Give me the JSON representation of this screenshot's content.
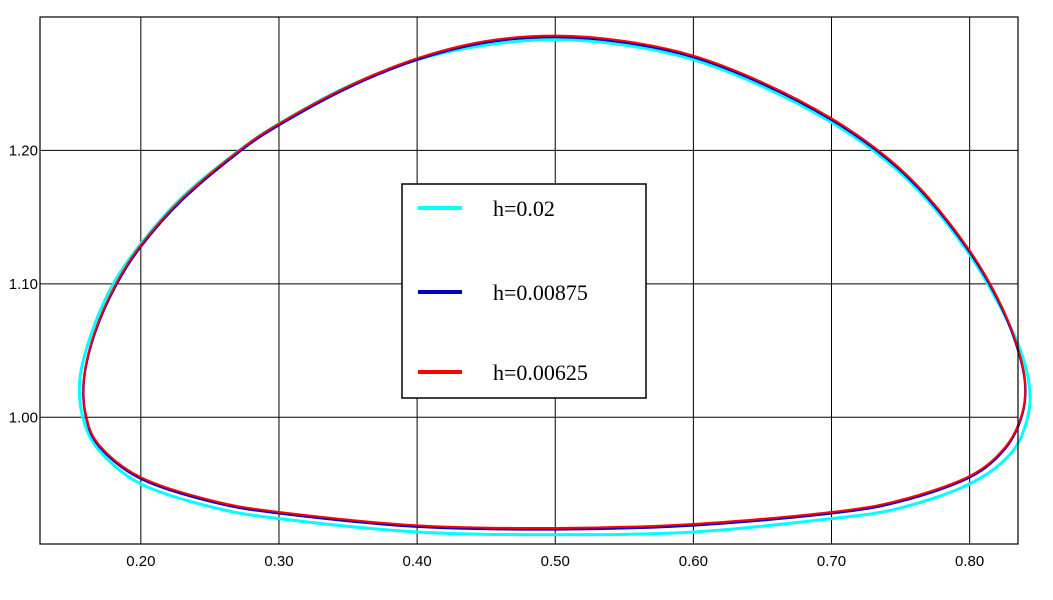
{
  "chart_data": {
    "type": "line",
    "title": "",
    "xlabel": "",
    "ylabel": "",
    "xlim": [
      0.127,
      0.835
    ],
    "ylim": [
      0.905,
      1.3
    ],
    "xticks": [
      0.2,
      0.3,
      0.4,
      0.5,
      0.6,
      0.7,
      0.8
    ],
    "xtick_labels": [
      "0.20",
      "0.30",
      "0.40",
      "0.50",
      "0.60",
      "0.70",
      "0.80"
    ],
    "yticks": [
      1.0,
      1.1,
      1.2
    ],
    "ytick_labels": [
      "1.00",
      "1.10",
      "1.20"
    ],
    "grid": true,
    "legend_position": "center",
    "series": [
      {
        "name": "h=0.02",
        "color": "#00FFFF",
        "closed": true,
        "points": [
          [
            0.5,
            1.283
          ],
          [
            0.55,
            1.279
          ],
          [
            0.6,
            1.268
          ],
          [
            0.65,
            1.248
          ],
          [
            0.7,
            1.221
          ],
          [
            0.74,
            1.192
          ],
          [
            0.77,
            1.162
          ],
          [
            0.8,
            1.122
          ],
          [
            0.82,
            1.087
          ],
          [
            0.835,
            1.055
          ],
          [
            0.843,
            1.025
          ],
          [
            0.842,
            1.0
          ],
          [
            0.83,
            0.973
          ],
          [
            0.8,
            0.95
          ],
          [
            0.75,
            0.932
          ],
          [
            0.7,
            0.924
          ],
          [
            0.6,
            0.914
          ],
          [
            0.5,
            0.912
          ],
          [
            0.4,
            0.914
          ],
          [
            0.3,
            0.924
          ],
          [
            0.25,
            0.933
          ],
          [
            0.2,
            0.95
          ],
          [
            0.17,
            0.975
          ],
          [
            0.158,
            1.0
          ],
          [
            0.156,
            1.03
          ],
          [
            0.165,
            1.065
          ],
          [
            0.18,
            1.1
          ],
          [
            0.2,
            1.13
          ],
          [
            0.23,
            1.165
          ],
          [
            0.27,
            1.199
          ],
          [
            0.3,
            1.22
          ],
          [
            0.35,
            1.248
          ],
          [
            0.4,
            1.268
          ],
          [
            0.45,
            1.279
          ]
        ]
      },
      {
        "name": "h=0.00875",
        "color": "#0000CC",
        "closed": true,
        "points": [
          [
            0.5,
            1.285
          ],
          [
            0.55,
            1.281
          ],
          [
            0.6,
            1.27
          ],
          [
            0.65,
            1.25
          ],
          [
            0.7,
            1.223
          ],
          [
            0.74,
            1.194
          ],
          [
            0.77,
            1.164
          ],
          [
            0.8,
            1.124
          ],
          [
            0.82,
            1.089
          ],
          [
            0.833,
            1.057
          ],
          [
            0.84,
            1.027
          ],
          [
            0.838,
            1.002
          ],
          [
            0.826,
            0.977
          ],
          [
            0.8,
            0.955
          ],
          [
            0.75,
            0.937
          ],
          [
            0.7,
            0.928
          ],
          [
            0.6,
            0.919
          ],
          [
            0.5,
            0.916
          ],
          [
            0.4,
            0.918
          ],
          [
            0.3,
            0.928
          ],
          [
            0.25,
            0.937
          ],
          [
            0.2,
            0.954
          ],
          [
            0.17,
            0.978
          ],
          [
            0.16,
            1.002
          ],
          [
            0.159,
            1.03
          ],
          [
            0.167,
            1.064
          ],
          [
            0.182,
            1.099
          ],
          [
            0.2,
            1.128
          ],
          [
            0.23,
            1.163
          ],
          [
            0.27,
            1.198
          ],
          [
            0.3,
            1.219
          ],
          [
            0.35,
            1.247
          ],
          [
            0.4,
            1.268
          ],
          [
            0.45,
            1.281
          ]
        ]
      },
      {
        "name": "h=0.00625",
        "color": "#FF0000",
        "closed": true,
        "points": [
          [
            0.5,
            1.286
          ],
          [
            0.55,
            1.282
          ],
          [
            0.6,
            1.271
          ],
          [
            0.65,
            1.251
          ],
          [
            0.7,
            1.224
          ],
          [
            0.74,
            1.195
          ],
          [
            0.77,
            1.165
          ],
          [
            0.8,
            1.125
          ],
          [
            0.82,
            1.09
          ],
          [
            0.833,
            1.058
          ],
          [
            0.84,
            1.028
          ],
          [
            0.838,
            1.003
          ],
          [
            0.826,
            0.978
          ],
          [
            0.8,
            0.956
          ],
          [
            0.75,
            0.938
          ],
          [
            0.7,
            0.929
          ],
          [
            0.6,
            0.92
          ],
          [
            0.5,
            0.917
          ],
          [
            0.4,
            0.919
          ],
          [
            0.3,
            0.929
          ],
          [
            0.25,
            0.938
          ],
          [
            0.2,
            0.955
          ],
          [
            0.17,
            0.979
          ],
          [
            0.16,
            1.003
          ],
          [
            0.159,
            1.031
          ],
          [
            0.167,
            1.065
          ],
          [
            0.182,
            1.1
          ],
          [
            0.2,
            1.129
          ],
          [
            0.23,
            1.164
          ],
          [
            0.27,
            1.199
          ],
          [
            0.3,
            1.22
          ],
          [
            0.35,
            1.248
          ],
          [
            0.4,
            1.269
          ],
          [
            0.45,
            1.282
          ]
        ]
      }
    ]
  }
}
